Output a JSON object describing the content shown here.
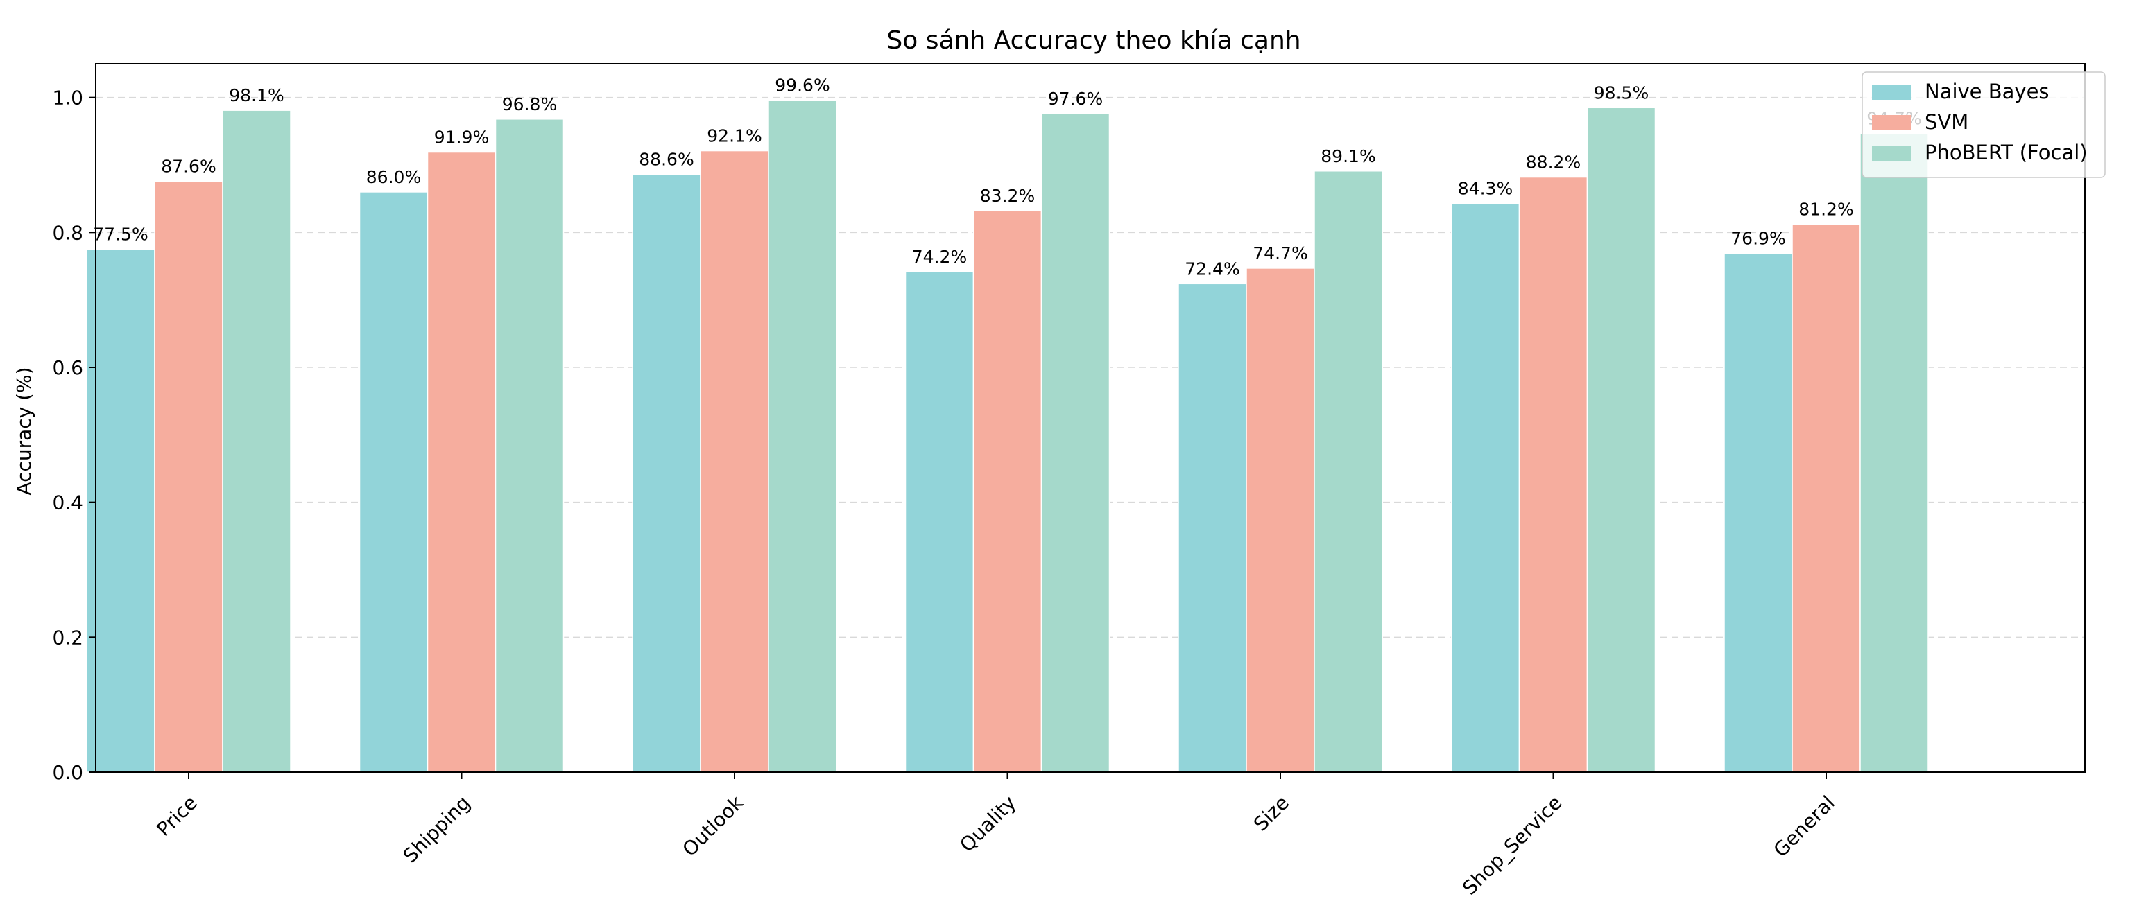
{
  "chart_data": {
    "type": "bar",
    "title": "So sánh Accuracy theo khía cạnh",
    "xlabel": "",
    "ylabel": "Accuracy (%)",
    "ylim": [
      0,
      1.05
    ],
    "yticks": [
      0.0,
      0.2,
      0.4,
      0.6,
      0.8,
      1.0
    ],
    "ytick_labels": [
      "0.0",
      "0.2",
      "0.4",
      "0.6",
      "0.8",
      "1.0"
    ],
    "grid": "y-dashed",
    "legend_position": "top-right",
    "categories": [
      "Price",
      "Shipping",
      "Outlook",
      "Quality",
      "Size",
      "Shop_Service",
      "General"
    ],
    "series": [
      {
        "name": "Naive Bayes",
        "color": "#92d4d9",
        "values": [
          0.775,
          0.86,
          0.886,
          0.742,
          0.724,
          0.843,
          0.769
        ],
        "labels": [
          "77.5%",
          "86.0%",
          "88.6%",
          "74.2%",
          "72.4%",
          "84.3%",
          "76.9%"
        ]
      },
      {
        "name": "SVM",
        "color": "#f6ad9e",
        "values": [
          0.876,
          0.919,
          0.921,
          0.832,
          0.747,
          0.882,
          0.812
        ],
        "labels": [
          "87.6%",
          "91.9%",
          "92.1%",
          "83.2%",
          "74.7%",
          "88.2%",
          "81.2%"
        ]
      },
      {
        "name": "PhoBERT (Focal)",
        "color": "#a5d9cb",
        "values": [
          0.981,
          0.968,
          0.996,
          0.976,
          0.891,
          0.985,
          0.947
        ],
        "labels": [
          "98.1%",
          "96.8%",
          "99.6%",
          "97.6%",
          "89.1%",
          "98.5%",
          "94.7%"
        ]
      }
    ]
  }
}
